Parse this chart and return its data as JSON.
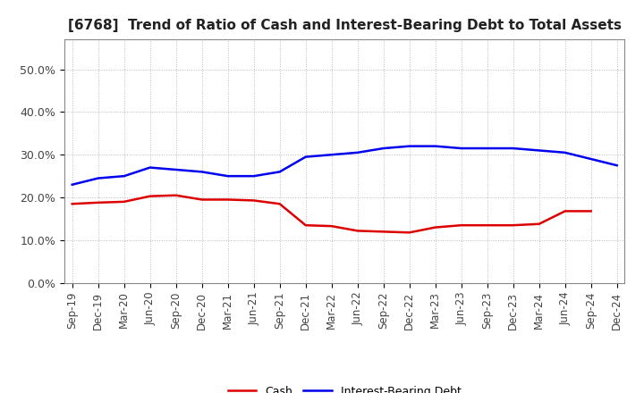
{
  "title": "[6768]  Trend of Ratio of Cash and Interest-Bearing Debt to Total Assets",
  "x_labels": [
    "Sep-19",
    "Dec-19",
    "Mar-20",
    "Jun-20",
    "Sep-20",
    "Dec-20",
    "Mar-21",
    "Jun-21",
    "Sep-21",
    "Dec-21",
    "Mar-22",
    "Jun-22",
    "Sep-22",
    "Dec-22",
    "Mar-23",
    "Jun-23",
    "Sep-23",
    "Dec-23",
    "Mar-24",
    "Jun-24",
    "Sep-24",
    "Dec-24"
  ],
  "cash": [
    18.5,
    18.8,
    19.0,
    20.3,
    20.5,
    19.5,
    19.5,
    19.3,
    18.5,
    13.5,
    13.3,
    12.2,
    12.0,
    11.8,
    13.0,
    13.5,
    13.5,
    13.5,
    13.8,
    16.8,
    16.8,
    null
  ],
  "debt": [
    23.0,
    24.5,
    25.0,
    27.0,
    26.5,
    26.0,
    25.0,
    25.0,
    26.0,
    29.5,
    30.0,
    30.5,
    31.5,
    32.0,
    32.0,
    31.5,
    31.5,
    31.5,
    31.0,
    30.5,
    29.0,
    27.5
  ],
  "cash_color": "#dd0000",
  "debt_color": "#0000ee",
  "ylim": [
    0,
    57
  ],
  "yticks": [
    0,
    10,
    20,
    30,
    40,
    50
  ],
  "ytick_labels": [
    "0.0%",
    "10.0%",
    "20.0%",
    "30.0%",
    "40.0%",
    "50.0%"
  ],
  "legend_cash": "Cash",
  "legend_debt": "Interest-Bearing Debt",
  "background_color": "#ffffff",
  "plot_bg_color": "#ffffff",
  "grid_color": "#bbbbbb",
  "line_width": 1.8,
  "title_fontsize": 11,
  "tick_fontsize": 8.5,
  "ytick_fontsize": 9
}
